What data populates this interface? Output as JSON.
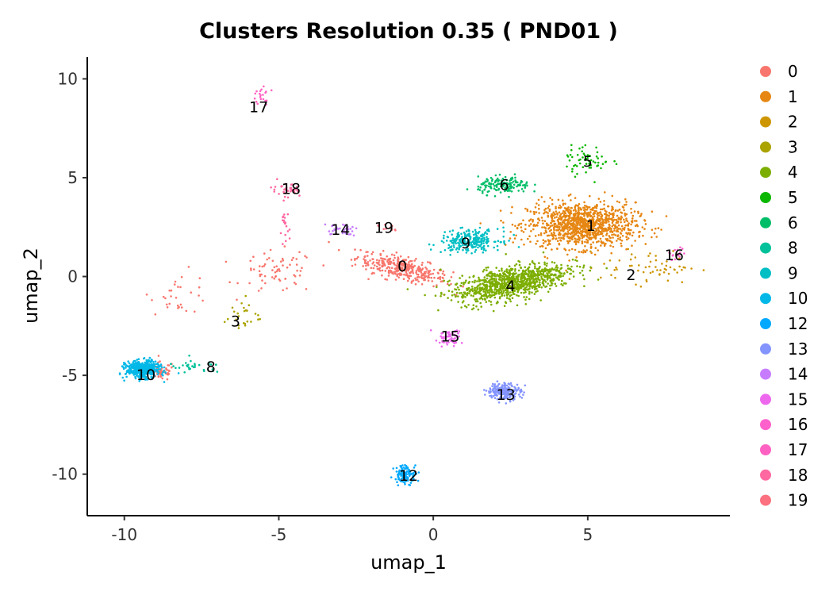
{
  "chart_data": {
    "type": "scatter",
    "title": "Clusters Resolution 0.35 ( PND01 )",
    "xlabel": "umap_1",
    "ylabel": "umap_2",
    "xlim": [
      -11.2,
      9.6
    ],
    "ylim": [
      -12.1,
      11.1
    ],
    "x_ticks": [
      -10,
      -5,
      0,
      5
    ],
    "x_tick_labels": [
      "-10",
      "-5",
      "0",
      "5"
    ],
    "y_ticks": [
      10,
      5,
      0,
      -5,
      -10
    ],
    "y_tick_labels": [
      "10",
      "5",
      "0",
      "-5",
      "-10"
    ],
    "grid": false,
    "legend_position": "right",
    "series": [
      {
        "name": "0",
        "color": "#F8766D",
        "center": [
          -1.2,
          0.5
        ],
        "blobs": [
          [
            -1.0,
            0.4,
            1.3,
            0.45,
            340,
            -0.4
          ],
          [
            -8.8,
            -4.8,
            0.35,
            0.4,
            60,
            0
          ],
          [
            -5.0,
            0.2,
            1.0,
            0.9,
            70,
            0
          ],
          [
            -8.2,
            -0.8,
            0.8,
            0.9,
            30,
            0
          ]
        ]
      },
      {
        "name": "1",
        "color": "#E68613",
        "center": [
          5.0,
          2.5
        ],
        "blobs": [
          [
            4.8,
            2.6,
            1.45,
            0.95,
            1100,
            0
          ]
        ]
      },
      {
        "name": "2",
        "color": "#CD9600",
        "center": [
          6.3,
          0.1
        ],
        "blobs": [
          [
            7.0,
            0.5,
            1.3,
            0.7,
            60,
            0
          ]
        ]
      },
      {
        "name": "3",
        "color": "#ABA300",
        "center": [
          -6.4,
          -2.3
        ],
        "blobs": [
          [
            -6.2,
            -2.0,
            0.5,
            0.8,
            25,
            0
          ]
        ]
      },
      {
        "name": "4",
        "color": "#7CAE00",
        "center": [
          2.5,
          -0.5
        ],
        "blobs": [
          [
            2.5,
            -0.3,
            1.6,
            0.65,
            950,
            0.35
          ]
        ]
      },
      {
        "name": "5",
        "color": "#0CB702",
        "center": [
          5.0,
          5.7
        ],
        "blobs": [
          [
            5.0,
            5.9,
            0.6,
            0.6,
            60,
            0
          ]
        ]
      },
      {
        "name": "6",
        "color": "#00BE67",
        "center": [
          2.3,
          4.6
        ],
        "blobs": [
          [
            2.3,
            4.6,
            0.7,
            0.35,
            150,
            0
          ]
        ]
      },
      {
        "name": "8",
        "color": "#00C19A",
        "center": [
          -7.2,
          -4.6
        ],
        "blobs": [
          [
            -7.7,
            -4.6,
            0.8,
            0.3,
            30,
            0
          ]
        ]
      },
      {
        "name": "9",
        "color": "#00BFC4",
        "center": [
          1.0,
          1.8
        ],
        "blobs": [
          [
            1.2,
            1.8,
            0.8,
            0.45,
            260,
            0.1
          ]
        ]
      },
      {
        "name": "10",
        "color": "#00B8E7",
        "center": [
          -9.5,
          -4.7
        ],
        "blobs": [
          [
            -9.4,
            -4.7,
            0.45,
            0.35,
            500,
            0
          ]
        ]
      },
      {
        "name": "12",
        "color": "#00A9FF",
        "center": [
          -0.8,
          -10.0
        ],
        "blobs": [
          [
            -0.9,
            -10.0,
            0.3,
            0.4,
            120,
            0
          ]
        ]
      },
      {
        "name": "13",
        "color": "#8494FF",
        "center": [
          2.3,
          -5.8
        ],
        "blobs": [
          [
            2.3,
            -5.8,
            0.45,
            0.35,
            200,
            0
          ]
        ]
      },
      {
        "name": "14",
        "color": "#C77CFF",
        "center": [
          -3.0,
          2.4
        ],
        "blobs": [
          [
            -3.0,
            2.4,
            0.45,
            0.25,
            35,
            0
          ]
        ]
      },
      {
        "name": "15",
        "color": "#ED68ED",
        "center": [
          0.6,
          -3.0
        ],
        "blobs": [
          [
            0.5,
            -3.1,
            0.35,
            0.35,
            60,
            0.6
          ]
        ]
      },
      {
        "name": "16",
        "color": "#FF61CC",
        "center": [
          7.9,
          1.2
        ],
        "blobs": [
          [
            7.9,
            1.2,
            0.4,
            0.3,
            15,
            0
          ]
        ]
      },
      {
        "name": "17",
        "color": "#FF61C3",
        "center": [
          -5.7,
          8.7
        ],
        "blobs": [
          [
            -5.6,
            9.1,
            0.25,
            0.4,
            20,
            0
          ]
        ]
      },
      {
        "name": "18",
        "color": "#FF68A1",
        "center": [
          -4.8,
          4.4
        ],
        "blobs": [
          [
            -4.8,
            4.4,
            0.45,
            0.25,
            40,
            -0.3
          ],
          [
            -4.8,
            2.5,
            0.12,
            0.8,
            20,
            0
          ]
        ]
      },
      {
        "name": "19",
        "color": "#FC717F",
        "center": [
          -1.6,
          2.5
        ],
        "blobs": [
          [
            -1.6,
            2.4,
            0.35,
            0.2,
            10,
            0
          ]
        ]
      }
    ],
    "cluster_labels": [
      {
        "text": "0",
        "x": -1.0,
        "y": 0.55
      },
      {
        "text": "1",
        "x": 5.1,
        "y": 2.6
      },
      {
        "text": "2",
        "x": 6.4,
        "y": 0.1
      },
      {
        "text": "3",
        "x": -6.4,
        "y": -2.25
      },
      {
        "text": "4",
        "x": 2.5,
        "y": -0.45
      },
      {
        "text": "5",
        "x": 5.0,
        "y": 5.85
      },
      {
        "text": "6",
        "x": 2.3,
        "y": 4.65
      },
      {
        "text": "8",
        "x": -7.2,
        "y": -4.55
      },
      {
        "text": "9",
        "x": 1.05,
        "y": 1.7
      },
      {
        "text": "10",
        "x": -9.3,
        "y": -4.95
      },
      {
        "text": "12",
        "x": -0.8,
        "y": -10.05
      },
      {
        "text": "13",
        "x": 2.35,
        "y": -5.95
      },
      {
        "text": "14",
        "x": -3.0,
        "y": 2.4
      },
      {
        "text": "15",
        "x": 0.55,
        "y": -3.0
      },
      {
        "text": "16",
        "x": 7.8,
        "y": 1.1
      },
      {
        "text": "17",
        "x": -5.65,
        "y": 8.6
      },
      {
        "text": "18",
        "x": -4.6,
        "y": 4.45
      },
      {
        "text": "19",
        "x": -1.6,
        "y": 2.5
      }
    ]
  }
}
